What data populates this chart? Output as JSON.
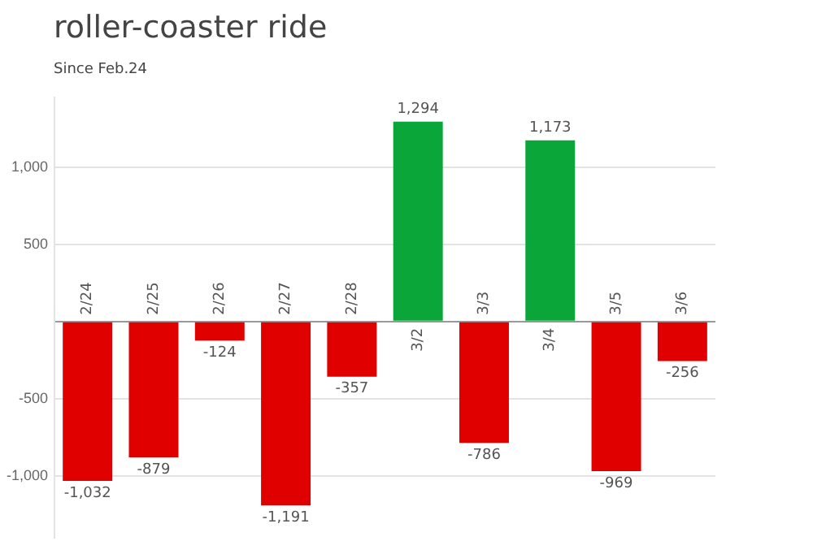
{
  "chart_data": {
    "type": "bar",
    "title": "roller-coaster ride",
    "subtitle": "Since Feb.24",
    "categories": [
      "2/24",
      "2/25",
      "2/26",
      "2/27",
      "2/28",
      "3/2",
      "3/3",
      "3/4",
      "3/5",
      "3/6"
    ],
    "values": [
      -1032,
      -879,
      -124,
      -1191,
      -357,
      1294,
      -786,
      1173,
      -969,
      -256
    ],
    "colors": [
      "#e00000",
      "#e00000",
      "#e00000",
      "#e00000",
      "#e00000",
      "#0aa63a",
      "#e00000",
      "#0aa63a",
      "#e00000",
      "#e00000"
    ],
    "value_labels": [
      "-1,032",
      "-879",
      "-124",
      "-1,191",
      "-357",
      "1,294",
      "-786",
      "1,173",
      "-969",
      "-256"
    ],
    "yticks": [
      {
        "value": -1000,
        "label": "-1,000"
      },
      {
        "value": -500,
        "label": "-500"
      },
      {
        "value": 0,
        "label": null
      },
      {
        "value": 500,
        "label": "500"
      },
      {
        "value": 1000,
        "label": "1,000"
      }
    ],
    "ylim": [
      -1400,
      1450
    ],
    "grid": "y",
    "legend": false
  }
}
